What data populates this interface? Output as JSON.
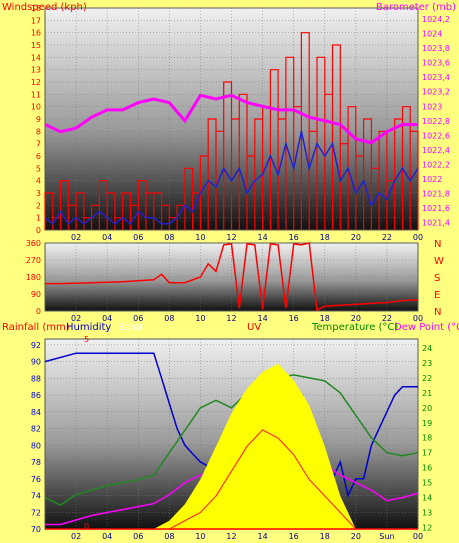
{
  "chart_data": [
    {
      "type": "line",
      "title": "",
      "header_labels": {
        "left": "Windspeed (kph)",
        "center": "",
        "right": "Barometer (mb)"
      },
      "x_ticks": [
        "02",
        "04",
        "06",
        "08",
        "10",
        "12",
        "14",
        "16",
        "18",
        "20",
        "22",
        "00"
      ],
      "y_left_ticks": [
        "0",
        "1",
        "2",
        "3",
        "4",
        "5",
        "6",
        "7",
        "8",
        "9",
        "10",
        "11",
        "12",
        "13",
        "14",
        "15",
        "16",
        "17",
        "18"
      ],
      "y_left_range": [
        0,
        18
      ],
      "y_right_ticks": [
        "1021,4",
        "1021,6",
        "1021,8",
        "1022",
        "1022,2",
        "1022,4",
        "1022,6",
        "1022,8",
        "1023",
        "1023,2",
        "1023,4",
        "1023,6",
        "1023,8",
        "1024",
        "1024,2"
      ],
      "y_right_range": [
        1021.3,
        1024.35
      ],
      "series": [
        {
          "name": "",
          "axis": "left",
          "color": "#ff0000",
          "style": "gust",
          "x": [
            0,
            0.5,
            1,
            1.5,
            2,
            2.5,
            3,
            3.5,
            4,
            4.5,
            5,
            5.5,
            6,
            6.5,
            7,
            7.5,
            8,
            8.5,
            9,
            9.5,
            10,
            10.5,
            11,
            11.5,
            12,
            12.5,
            13,
            13.5,
            14,
            14.5,
            15,
            15.5,
            16,
            16.5,
            17,
            17.5,
            18,
            18.5,
            19,
            19.5,
            20,
            20.5,
            21,
            21.5,
            22,
            22.5,
            23,
            23.5,
            24
          ],
          "y": [
            3,
            1,
            4,
            2,
            3,
            1,
            2,
            4,
            3,
            1,
            3,
            2,
            4,
            3,
            3,
            2,
            1,
            2,
            5,
            3,
            6,
            9,
            8,
            12,
            9,
            11,
            6,
            9,
            10,
            13,
            9,
            14,
            10,
            16,
            8,
            14,
            11,
            15,
            7,
            10,
            6,
            9,
            5,
            8,
            4,
            9,
            10,
            8,
            11
          ]
        },
        {
          "name": "",
          "axis": "left",
          "color": "#2222cc",
          "style": "average",
          "x": [
            0,
            0.5,
            1,
            1.5,
            2,
            2.5,
            3,
            3.5,
            4,
            4.5,
            5,
            5.5,
            6,
            6.5,
            7,
            7.5,
            8,
            8.5,
            9,
            9.5,
            10,
            10.5,
            11,
            11.5,
            12,
            12.5,
            13,
            13.5,
            14,
            14.5,
            15,
            15.5,
            16,
            16.5,
            17,
            17.5,
            18,
            18.5,
            19,
            19.5,
            20,
            20.5,
            21,
            21.5,
            22,
            22.5,
            23,
            23.5,
            24
          ],
          "y": [
            1,
            0.5,
            1.5,
            0.5,
            1,
            0.5,
            1,
            1.5,
            1,
            0.5,
            1,
            0.5,
            1.5,
            1,
            1,
            0.5,
            0.5,
            1,
            2,
            1.5,
            3,
            4,
            3.5,
            5,
            4,
            5,
            3,
            4,
            4.5,
            6,
            4.5,
            7,
            5,
            8,
            5,
            7,
            6,
            7,
            4,
            5,
            3,
            4,
            2,
            3,
            2.5,
            4,
            5,
            4,
            5
          ]
        },
        {
          "name": "",
          "axis": "right",
          "color": "#ff00ff",
          "style": "pressure",
          "x": [
            0,
            1,
            2,
            3,
            4,
            5,
            6,
            7,
            8,
            9,
            10,
            11,
            12,
            13,
            14,
            15,
            16,
            17,
            18,
            19,
            20,
            21,
            22,
            23,
            24
          ],
          "y": [
            1022.75,
            1022.65,
            1022.7,
            1022.85,
            1022.95,
            1022.95,
            1023.05,
            1023.1,
            1023.05,
            1022.8,
            1023.15,
            1023.1,
            1023.15,
            1023.05,
            1023.0,
            1022.95,
            1022.95,
            1022.85,
            1022.8,
            1022.75,
            1022.55,
            1022.5,
            1022.65,
            1022.75,
            1022.75
          ]
        }
      ]
    },
    {
      "type": "line",
      "title": "",
      "x_ticks": [
        "02",
        "04",
        "06",
        "08",
        "10",
        "12",
        "14",
        "16",
        "18",
        "20",
        "22",
        "00"
      ],
      "y_left_ticks": [
        "0",
        "90",
        "180",
        "270",
        "360"
      ],
      "y_left_range": [
        0,
        360
      ],
      "right_labels": [
        "N",
        "W",
        "S",
        "E",
        "N"
      ],
      "series": [
        {
          "name": "",
          "color": "#ff0000",
          "x": [
            0,
            1,
            2,
            3,
            4,
            5,
            6,
            7,
            7.5,
            8,
            9,
            10,
            10.5,
            11,
            11.5,
            12,
            12.5,
            13,
            13.5,
            14,
            14.5,
            15,
            15.5,
            16,
            16.5,
            17,
            17.5,
            18,
            19,
            20,
            21,
            22,
            23,
            24
          ],
          "y": [
            145,
            145,
            147,
            150,
            152,
            155,
            160,
            165,
            195,
            150,
            150,
            180,
            250,
            210,
            350,
            355,
            15,
            355,
            350,
            10,
            355,
            350,
            15,
            355,
            350,
            360,
            5,
            25,
            30,
            35,
            40,
            45,
            55,
            60
          ]
        }
      ]
    },
    {
      "type": "line",
      "title": "",
      "header_labels": {
        "left": [
          "Rainfall (mm)",
          "Humidity",
          "Solar"
        ],
        "center": "UV",
        "right": [
          "Temperature (°C)",
          "Dew Point (°C)"
        ]
      },
      "x_ticks": [
        "02",
        "04",
        "06",
        "08",
        "10",
        "12",
        "14",
        "16",
        "18",
        "20",
        "Sun",
        "00"
      ],
      "y_left_ticks": [
        "70",
        "72",
        "74",
        "76",
        "78",
        "80",
        "82",
        "84",
        "86",
        "88",
        "90",
        "92"
      ],
      "y_left_range": [
        70,
        92.7
      ],
      "y_rain_ticks": [
        "0",
        "5"
      ],
      "y_right_ticks": [
        "12",
        "13",
        "14",
        "15",
        "16",
        "17",
        "18",
        "19",
        "20",
        "21",
        "22",
        "23",
        "24"
      ],
      "y_right_range": [
        11.9,
        24.6
      ],
      "series": [
        {
          "name": "Humidity",
          "axis": "left",
          "color": "#0000cc",
          "x": [
            0,
            2,
            4,
            6,
            7,
            7.5,
            8,
            8.5,
            9,
            9.5,
            10,
            11,
            11.5,
            12,
            12.5,
            13,
            13.5,
            14,
            14.5,
            15,
            15.5,
            16,
            16.5,
            17,
            17.5,
            18,
            18.5,
            19,
            19.5,
            20,
            20.5,
            21,
            21.5,
            22,
            22.5,
            23,
            24
          ],
          "y": [
            90,
            91,
            91,
            91,
            91,
            88,
            85,
            82,
            80,
            79,
            78,
            77,
            74,
            76,
            75,
            77,
            74,
            78,
            74,
            77,
            73,
            76,
            72,
            74,
            73,
            76,
            76,
            78,
            74,
            76,
            76,
            80,
            82,
            84,
            86,
            87,
            87
          ]
        },
        {
          "name": "Temperature (°C)",
          "axis": "right",
          "color": "#228822",
          "x": [
            0,
            1,
            2,
            3,
            4,
            5,
            6,
            7,
            8,
            9,
            10,
            11,
            12,
            13,
            14,
            15,
            16,
            17,
            18,
            19,
            20,
            21,
            22,
            23,
            24
          ],
          "y": [
            14,
            13.5,
            14.2,
            14.5,
            14.8,
            15,
            15.2,
            15.5,
            17,
            18.5,
            20,
            20.5,
            20,
            21,
            21.5,
            22,
            22.2,
            22,
            21.8,
            21,
            19.5,
            18,
            17,
            16.8,
            17
          ]
        },
        {
          "name": "Dew Point (°C)",
          "axis": "right",
          "color": "#ff00ff",
          "x": [
            0,
            1,
            2,
            3,
            4,
            5,
            6,
            7,
            8,
            9,
            10,
            11,
            12,
            13,
            14,
            15,
            16,
            17,
            18,
            19,
            20,
            21,
            22,
            23,
            24
          ],
          "y": [
            12.2,
            12.2,
            12.5,
            12.8,
            13,
            13.2,
            13.4,
            13.6,
            14.2,
            15,
            15.5,
            15.8,
            15.8,
            16.2,
            16.8,
            17,
            16.8,
            16.5,
            16.2,
            15.5,
            15,
            14.5,
            13.8,
            14,
            14.3
          ]
        },
        {
          "name": "Solar",
          "axis": "solar",
          "color": "#ffff00",
          "x": [
            7,
            8,
            9,
            10,
            11,
            12,
            13,
            14,
            15,
            16,
            17,
            18,
            19,
            20
          ],
          "y": [
            0,
            0.05,
            0.15,
            0.3,
            0.5,
            0.7,
            0.85,
            0.95,
            1.0,
            0.9,
            0.75,
            0.5,
            0.2,
            0
          ]
        },
        {
          "name": "UV",
          "axis": "solar",
          "color": "#ff3333",
          "x": [
            8,
            9,
            10,
            11,
            12,
            13,
            14,
            15,
            16,
            17,
            18,
            19,
            20
          ],
          "y": [
            0,
            0.05,
            0.1,
            0.2,
            0.35,
            0.5,
            0.6,
            0.55,
            0.45,
            0.3,
            0.2,
            0.1,
            0
          ]
        },
        {
          "name": "Rainfall (mm)",
          "axis": "rain",
          "color": "#ff0000",
          "x": [
            0,
            24
          ],
          "y": [
            0,
            0
          ]
        }
      ]
    }
  ]
}
